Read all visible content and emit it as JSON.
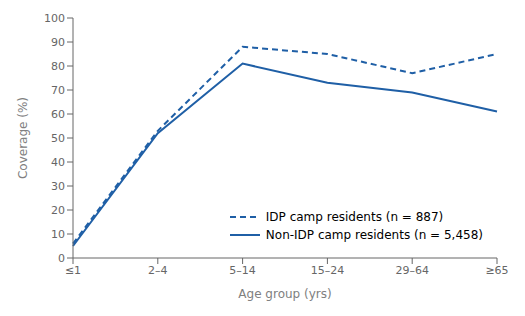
{
  "chart_data": {
    "type": "line",
    "xlabel": "Age group (yrs)",
    "ylabel": "Coverage (%)",
    "categories": [
      "≤1",
      "2–4",
      "5–14",
      "15–24",
      "29–64",
      "≥65"
    ],
    "series": [
      {
        "name": "IDP camp residents (n = 887)",
        "color": "#1f5fa6",
        "line_style": "dashed",
        "values": [
          6,
          53,
          88,
          85,
          77,
          85
        ]
      },
      {
        "name": "Non-IDP camp residents (n = 5,458)",
        "color": "#1f5fa6",
        "line_style": "solid",
        "values": [
          5,
          52,
          81,
          73,
          69,
          61
        ]
      }
    ],
    "ylim": [
      0,
      100
    ],
    "yticks": [
      0,
      10,
      20,
      30,
      40,
      50,
      60,
      70,
      80,
      90,
      100
    ],
    "grid": false,
    "legend": "lower right"
  }
}
